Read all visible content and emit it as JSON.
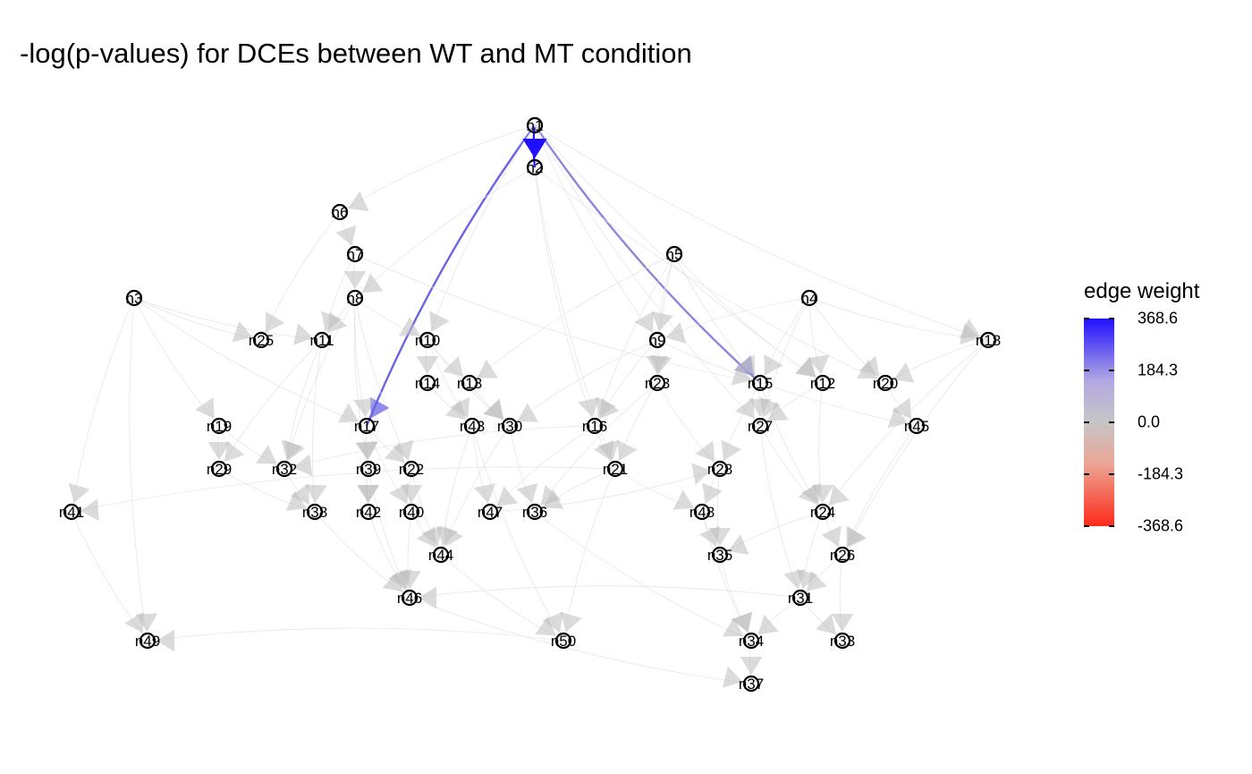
{
  "title": "-log(p-values) for DCEs between WT and MT condition",
  "legend": {
    "title": "edge weight",
    "ticks": [
      "368.6",
      "184.3",
      "0.0",
      "-184.3",
      "-368.6"
    ],
    "colors": {
      "high": "#1f11ff",
      "mid": "#c6c6c6",
      "low": "#ff2a1a"
    }
  },
  "nodes": [
    {
      "id": "n1",
      "label": "n1"
    },
    {
      "id": "n2",
      "label": "n2"
    },
    {
      "id": "n3",
      "label": "n3"
    },
    {
      "id": "n4",
      "label": "n4"
    },
    {
      "id": "n5",
      "label": "n5"
    },
    {
      "id": "n6",
      "label": "n6"
    },
    {
      "id": "n7",
      "label": "n7"
    },
    {
      "id": "n8",
      "label": "n8"
    },
    {
      "id": "n9",
      "label": "n9"
    },
    {
      "id": "n10",
      "label": "n10"
    },
    {
      "id": "n11",
      "label": "n11"
    },
    {
      "id": "n12",
      "label": "n12"
    },
    {
      "id": "n13",
      "label": "n13"
    },
    {
      "id": "n14",
      "label": "n14"
    },
    {
      "id": "n15",
      "label": "n15"
    },
    {
      "id": "n16",
      "label": "n16"
    },
    {
      "id": "n17",
      "label": "n17"
    },
    {
      "id": "n18",
      "label": "n18"
    },
    {
      "id": "n19",
      "label": "n19"
    },
    {
      "id": "n20",
      "label": "n20"
    },
    {
      "id": "n21",
      "label": "n21"
    },
    {
      "id": "n22",
      "label": "n22"
    },
    {
      "id": "n23",
      "label": "n23"
    },
    {
      "id": "n24",
      "label": "n24"
    },
    {
      "id": "n25",
      "label": "n25"
    },
    {
      "id": "n26",
      "label": "n26"
    },
    {
      "id": "n27",
      "label": "n27"
    },
    {
      "id": "n28",
      "label": "n28"
    },
    {
      "id": "n29",
      "label": "n29"
    },
    {
      "id": "n30",
      "label": "n30"
    },
    {
      "id": "n31",
      "label": "n31"
    },
    {
      "id": "n32",
      "label": "n32"
    },
    {
      "id": "n33",
      "label": "n33"
    },
    {
      "id": "n34",
      "label": "n34"
    },
    {
      "id": "n35",
      "label": "n35"
    },
    {
      "id": "n36",
      "label": "n36"
    },
    {
      "id": "n37",
      "label": "n37"
    },
    {
      "id": "n38",
      "label": "n38"
    },
    {
      "id": "n39",
      "label": "n39"
    },
    {
      "id": "n40",
      "label": "n40"
    },
    {
      "id": "n41",
      "label": "n41"
    },
    {
      "id": "n42",
      "label": "n42"
    },
    {
      "id": "n43",
      "label": "n43"
    },
    {
      "id": "n44",
      "label": "n44"
    },
    {
      "id": "n45",
      "label": "n45"
    },
    {
      "id": "n46",
      "label": "n46"
    },
    {
      "id": "n47",
      "label": "n47"
    },
    {
      "id": "n48",
      "label": "n48"
    },
    {
      "id": "n49",
      "label": "n49"
    },
    {
      "id": "n50",
      "label": "n50"
    }
  ],
  "edges": [
    {
      "from": "n1",
      "to": "n2",
      "weight": 368.6
    },
    {
      "from": "n1",
      "to": "n17",
      "weight": 200
    },
    {
      "from": "n1",
      "to": "n15",
      "weight": 130
    },
    {
      "from": "n1",
      "to": "n10",
      "weight": 0
    },
    {
      "from": "n1",
      "to": "n18",
      "weight": 0
    },
    {
      "from": "n1",
      "to": "n9",
      "weight": 0
    },
    {
      "from": "n1",
      "to": "n12",
      "weight": 0
    },
    {
      "from": "n1",
      "to": "n27",
      "weight": 0
    },
    {
      "from": "n1",
      "to": "n6",
      "weight": 0
    },
    {
      "from": "n2",
      "to": "n8",
      "weight": 0
    },
    {
      "from": "n2",
      "to": "n16",
      "weight": 0
    },
    {
      "from": "n2",
      "to": "n20",
      "weight": 0
    },
    {
      "from": "n2",
      "to": "n21",
      "weight": 0
    },
    {
      "from": "n6",
      "to": "n7",
      "weight": 0
    },
    {
      "from": "n6",
      "to": "n25",
      "weight": 0
    },
    {
      "from": "n7",
      "to": "n8",
      "weight": 0
    },
    {
      "from": "n7",
      "to": "n11",
      "weight": 0
    },
    {
      "from": "n7",
      "to": "n15",
      "weight": 0
    },
    {
      "from": "n8",
      "to": "n17",
      "weight": 0
    },
    {
      "from": "n8",
      "to": "n11",
      "weight": 0
    },
    {
      "from": "n8",
      "to": "n10",
      "weight": 0
    },
    {
      "from": "n8",
      "to": "n39",
      "weight": 0
    },
    {
      "from": "n8",
      "to": "n32",
      "weight": 0
    },
    {
      "from": "n8",
      "to": "n22",
      "weight": 0
    },
    {
      "from": "n3",
      "to": "n25",
      "weight": 0
    },
    {
      "from": "n3",
      "to": "n11",
      "weight": 0
    },
    {
      "from": "n3",
      "to": "n19",
      "weight": 0
    },
    {
      "from": "n3",
      "to": "n41",
      "weight": 0
    },
    {
      "from": "n3",
      "to": "n49",
      "weight": 0
    },
    {
      "from": "n3",
      "to": "n17",
      "weight": 0
    },
    {
      "from": "n5",
      "to": "n9",
      "weight": 0
    },
    {
      "from": "n5",
      "to": "n15",
      "weight": 0
    },
    {
      "from": "n5",
      "to": "n16",
      "weight": 0
    },
    {
      "from": "n5",
      "to": "n23",
      "weight": 0
    },
    {
      "from": "n5",
      "to": "n13",
      "weight": 0
    },
    {
      "from": "n5",
      "to": "n12",
      "weight": 0
    },
    {
      "from": "n4",
      "to": "n15",
      "weight": 0
    },
    {
      "from": "n4",
      "to": "n12",
      "weight": 0
    },
    {
      "from": "n4",
      "to": "n20",
      "weight": 0
    },
    {
      "from": "n4",
      "to": "n18",
      "weight": 0
    },
    {
      "from": "n4",
      "to": "n27",
      "weight": 0
    },
    {
      "from": "n4",
      "to": "n9",
      "weight": 0
    },
    {
      "from": "n10",
      "to": "n14",
      "weight": 0
    },
    {
      "from": "n10",
      "to": "n13",
      "weight": 0
    },
    {
      "from": "n10",
      "to": "n43",
      "weight": 0
    },
    {
      "from": "n10",
      "to": "n30",
      "weight": 0
    },
    {
      "from": "n9",
      "to": "n23",
      "weight": 0
    },
    {
      "from": "n9",
      "to": "n16",
      "weight": 0
    },
    {
      "from": "n9",
      "to": "n30",
      "weight": 0
    },
    {
      "from": "n9",
      "to": "n45",
      "weight": 0
    },
    {
      "from": "n11",
      "to": "n29",
      "weight": 0
    },
    {
      "from": "n11",
      "to": "n32",
      "weight": 0
    },
    {
      "from": "n11",
      "to": "n38",
      "weight": 0
    },
    {
      "from": "n14",
      "to": "n43",
      "weight": 0
    },
    {
      "from": "n13",
      "to": "n30",
      "weight": 0
    },
    {
      "from": "n15",
      "to": "n27",
      "weight": 0
    },
    {
      "from": "n15",
      "to": "n24",
      "weight": 0
    },
    {
      "from": "n15",
      "to": "n28",
      "weight": 0
    },
    {
      "from": "n12",
      "to": "n27",
      "weight": 0
    },
    {
      "from": "n12",
      "to": "n24",
      "weight": 0
    },
    {
      "from": "n20",
      "to": "n45",
      "weight": 0
    },
    {
      "from": "n18",
      "to": "n26",
      "weight": 0
    },
    {
      "from": "n18",
      "to": "n24",
      "weight": 0
    },
    {
      "from": "n18",
      "to": "n20",
      "weight": 0
    },
    {
      "from": "n23",
      "to": "n21",
      "weight": 0
    },
    {
      "from": "n23",
      "to": "n28",
      "weight": 0
    },
    {
      "from": "n23",
      "to": "n36",
      "weight": 0
    },
    {
      "from": "n16",
      "to": "n21",
      "weight": 0
    },
    {
      "from": "n16",
      "to": "n47",
      "weight": 0
    },
    {
      "from": "n16",
      "to": "n32",
      "weight": 0
    },
    {
      "from": "n17",
      "to": "n39",
      "weight": 0
    },
    {
      "from": "n17",
      "to": "n42",
      "weight": 0
    },
    {
      "from": "n17",
      "to": "n40",
      "weight": 0
    },
    {
      "from": "n17",
      "to": "n22",
      "weight": 0
    },
    {
      "from": "n19",
      "to": "n29",
      "weight": 0
    },
    {
      "from": "n19",
      "to": "n32",
      "weight": 0
    },
    {
      "from": "n43",
      "to": "n47",
      "weight": 0
    },
    {
      "from": "n43",
      "to": "n44",
      "weight": 0
    },
    {
      "from": "n30",
      "to": "n36",
      "weight": 0
    },
    {
      "from": "n30",
      "to": "n44",
      "weight": 0
    },
    {
      "from": "n27",
      "to": "n24",
      "weight": 0
    },
    {
      "from": "n27",
      "to": "n31",
      "weight": 0
    },
    {
      "from": "n21",
      "to": "n48",
      "weight": 0
    },
    {
      "from": "n21",
      "to": "n36",
      "weight": 0
    },
    {
      "from": "n21",
      "to": "n50",
      "weight": 0
    },
    {
      "from": "n21",
      "to": "n41",
      "weight": 0
    },
    {
      "from": "n28",
      "to": "n48",
      "weight": 0
    },
    {
      "from": "n28",
      "to": "n35",
      "weight": 0
    },
    {
      "from": "n22",
      "to": "n40",
      "weight": 0
    },
    {
      "from": "n22",
      "to": "n44",
      "weight": 0
    },
    {
      "from": "n39",
      "to": "n42",
      "weight": 0
    },
    {
      "from": "n39",
      "to": "n46",
      "weight": 0
    },
    {
      "from": "n32",
      "to": "n38",
      "weight": 0
    },
    {
      "from": "n29",
      "to": "n38",
      "weight": 0
    },
    {
      "from": "n24",
      "to": "n26",
      "weight": 0
    },
    {
      "from": "n24",
      "to": "n31",
      "weight": 0
    },
    {
      "from": "n24",
      "to": "n35",
      "weight": 0
    },
    {
      "from": "n45",
      "to": "n26",
      "weight": 0
    },
    {
      "from": "n48",
      "to": "n35",
      "weight": 0
    },
    {
      "from": "n48",
      "to": "n34",
      "weight": 0
    },
    {
      "from": "n40",
      "to": "n46",
      "weight": 0
    },
    {
      "from": "n40",
      "to": "n44",
      "weight": 0
    },
    {
      "from": "n42",
      "to": "n46",
      "weight": 0
    },
    {
      "from": "n38",
      "to": "n46",
      "weight": 0
    },
    {
      "from": "n26",
      "to": "n31",
      "weight": 0
    },
    {
      "from": "n26",
      "to": "n33",
      "weight": 0
    },
    {
      "from": "n31",
      "to": "n46",
      "weight": 0
    },
    {
      "from": "n31",
      "to": "n33",
      "weight": 0
    },
    {
      "from": "n31",
      "to": "n34",
      "weight": 0
    },
    {
      "from": "n35",
      "to": "n34",
      "weight": 0
    },
    {
      "from": "n34",
      "to": "n37",
      "weight": 0
    },
    {
      "from": "n44",
      "to": "n50",
      "weight": 0
    },
    {
      "from": "n43",
      "to": "n50",
      "weight": 0
    },
    {
      "from": "n50",
      "to": "n49",
      "weight": 0
    },
    {
      "from": "n41",
      "to": "n49",
      "weight": 0
    },
    {
      "from": "n36",
      "to": "n34",
      "weight": 0
    },
    {
      "from": "n46",
      "to": "n37",
      "weight": 0
    },
    {
      "from": "n47",
      "to": "n28",
      "weight": 0
    }
  ]
}
